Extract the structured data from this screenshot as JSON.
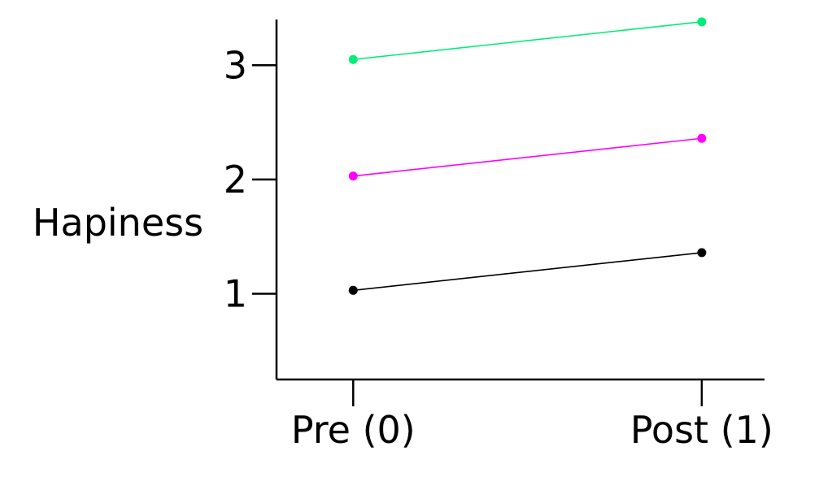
{
  "chart_data": {
    "type": "line",
    "title": "",
    "xlabel": "",
    "ylabel": "Hapiness",
    "categories": [
      "Pre (0)",
      "Post (1)"
    ],
    "x": [
      0,
      1
    ],
    "xlim": [
      -0.22,
      1.18
    ],
    "ylim": [
      0.25,
      3.4
    ],
    "yticks": [
      1,
      2,
      3
    ],
    "grid": false,
    "legend": "none",
    "series": [
      {
        "color": "#000000",
        "values": [
          1.03,
          1.36
        ]
      },
      {
        "color": "#ff00ff",
        "values": [
          2.03,
          2.36
        ]
      },
      {
        "color": "#00ee77",
        "values": [
          3.05,
          3.38
        ]
      }
    ]
  }
}
